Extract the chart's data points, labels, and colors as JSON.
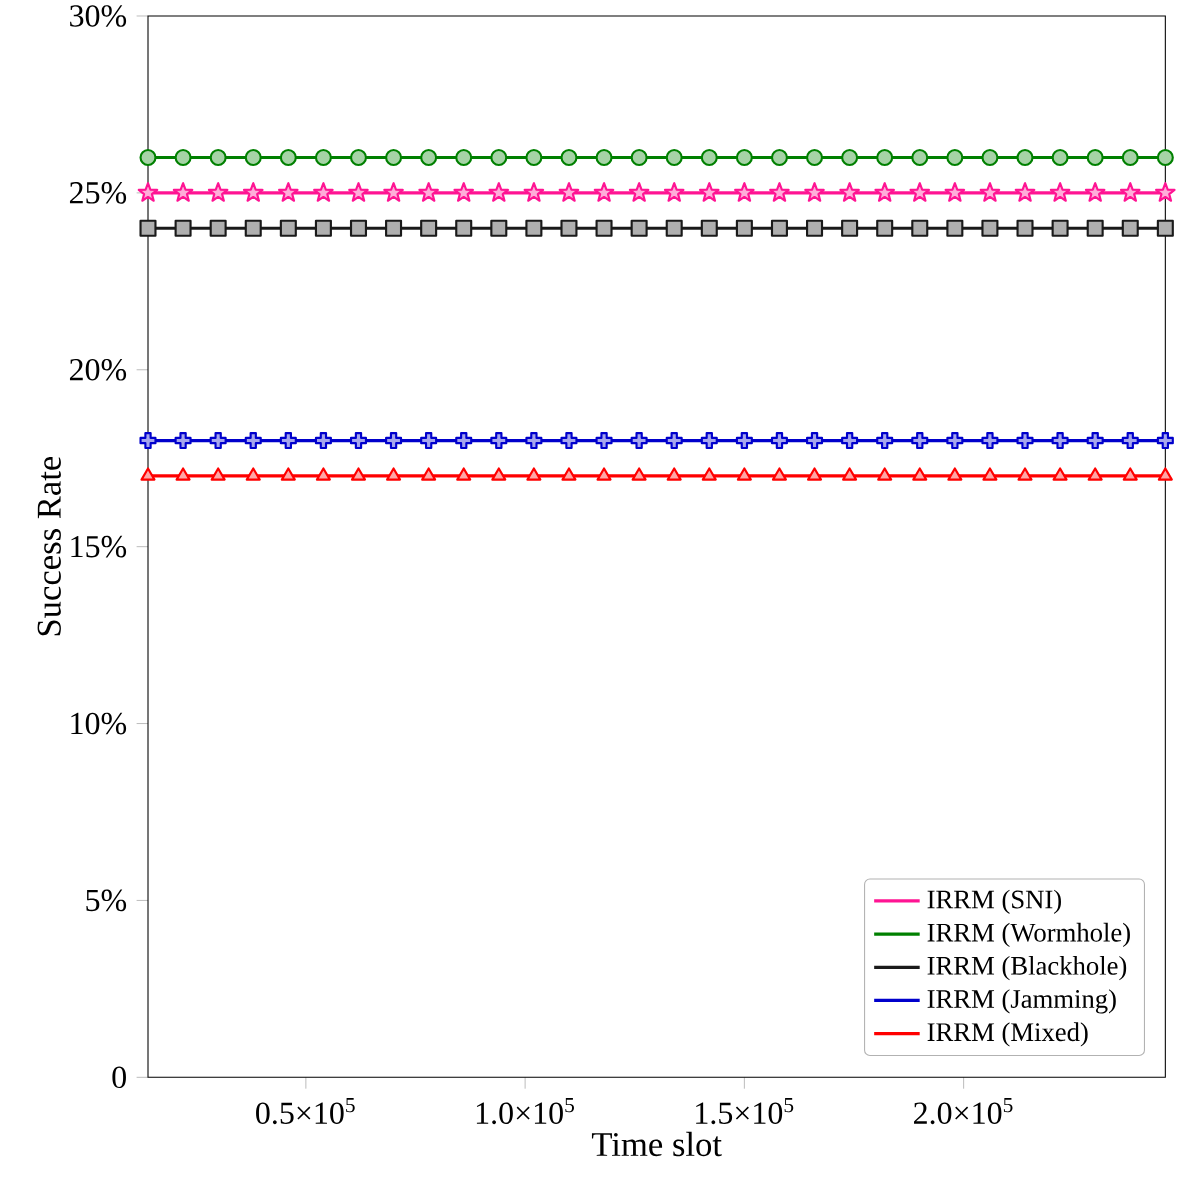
{
  "chart_data": {
    "type": "line",
    "xlabel": "Time slot",
    "ylabel": "Success Rate",
    "x": [
      14000,
      22000,
      30000,
      38000,
      46000,
      54000,
      62000,
      70000,
      78000,
      86000,
      94000,
      102000,
      110000,
      118000,
      126000,
      134000,
      142000,
      150000,
      158000,
      166000,
      174000,
      182000,
      190000,
      198000,
      206000,
      214000,
      222000,
      230000,
      238000,
      246000
    ],
    "xlim": [
      14000,
      246000
    ],
    "xticks": [
      {
        "value": 50000,
        "label": "0.5×10$^{5}$"
      },
      {
        "value": 100000,
        "label": "1.0×10$^{5}$"
      },
      {
        "value": 150000,
        "label": "1.5×10$^{5}$"
      },
      {
        "value": 200000,
        "label": "2.0×10$^{5}$"
      }
    ],
    "ylim": [
      0,
      30
    ],
    "yticks": [
      {
        "value": 0,
        "label": "0"
      },
      {
        "value": 5,
        "label": "5%"
      },
      {
        "value": 10,
        "label": "10%"
      },
      {
        "value": 15,
        "label": "15%"
      },
      {
        "value": 20,
        "label": "20%"
      },
      {
        "value": 25,
        "label": "25%"
      },
      {
        "value": 30,
        "label": "30%"
      }
    ],
    "legend": "bottom right",
    "grid": false,
    "line_style": "solid",
    "series": [
      {
        "name": "IRRM (SNI)",
        "color": "#ff1493",
        "marker": "star",
        "values": [
          25,
          25,
          25,
          25,
          25,
          25,
          25,
          25,
          25,
          25,
          25,
          25,
          25,
          25,
          25,
          25,
          25,
          25,
          25,
          25,
          25,
          25,
          25,
          25,
          25,
          25,
          25,
          25,
          25,
          25
        ]
      },
      {
        "name": "IRRM (Wormhole)",
        "color": "#008000",
        "marker": "circle",
        "values": [
          26,
          26,
          26,
          26,
          26,
          26,
          26,
          26,
          26,
          26,
          26,
          26,
          26,
          26,
          26,
          26,
          26,
          26,
          26,
          26,
          26,
          26,
          26,
          26,
          26,
          26,
          26,
          26,
          26,
          26
        ]
      },
      {
        "name": "IRRM (Blackhole)",
        "color": "#1a1a1a",
        "marker": "square",
        "values": [
          24,
          24,
          24,
          24,
          24,
          24,
          24,
          24,
          24,
          24,
          24,
          24,
          24,
          24,
          24,
          24,
          24,
          24,
          24,
          24,
          24,
          24,
          24,
          24,
          24,
          24,
          24,
          24,
          24,
          24
        ]
      },
      {
        "name": "IRRM (Jamming)",
        "color": "#0000cc",
        "marker": "cross",
        "values": [
          18,
          18,
          18,
          18,
          18,
          18,
          18,
          18,
          18,
          18,
          18,
          18,
          18,
          18,
          18,
          18,
          18,
          18,
          18,
          18,
          18,
          18,
          18,
          18,
          18,
          18,
          18,
          18,
          18,
          18
        ]
      },
      {
        "name": "IRRM (Mixed)",
        "color": "#ff0000",
        "marker": "triangle",
        "values": [
          17,
          17,
          17,
          17,
          17,
          17,
          17,
          17,
          17,
          17,
          17,
          17,
          17,
          17,
          17,
          17,
          17,
          17,
          17,
          17,
          17,
          17,
          17,
          17,
          17,
          17,
          17,
          17,
          17,
          17
        ]
      }
    ]
  }
}
